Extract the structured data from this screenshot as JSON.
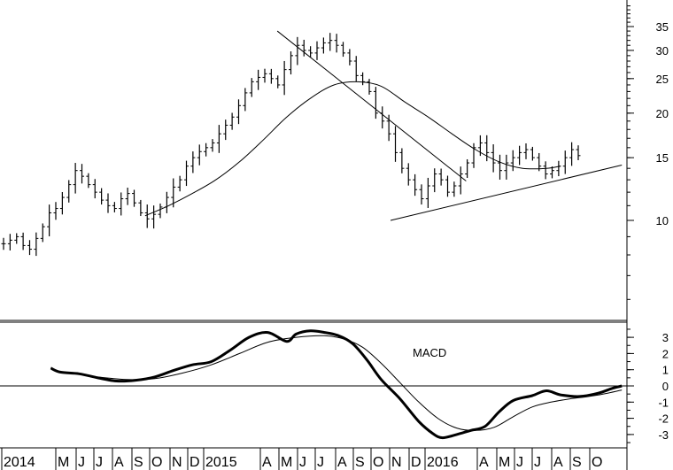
{
  "chart_data": [
    {
      "type": "ohlc",
      "panel": "price",
      "scale": "log",
      "y_ticks": [
        10,
        15,
        20,
        25,
        30,
        35
      ],
      "x_labels": [
        "2014",
        "M",
        "J",
        "J",
        "A",
        "S",
        "O",
        "N",
        "D",
        "2015",
        "A",
        "M",
        "J",
        "J",
        "A",
        "S",
        "O",
        "N",
        "D",
        "2016",
        "A",
        "M",
        "J",
        "J",
        "A",
        "S",
        "O"
      ],
      "weekly_close": [
        8.6,
        8.8,
        9.0,
        8.5,
        8.3,
        8.9,
        9.6,
        10.5,
        10.8,
        11.6,
        12.6,
        13.8,
        13.3,
        12.6,
        12.0,
        11.4,
        11.0,
        10.8,
        11.5,
        11.9,
        11.2,
        10.5,
        10.1,
        10.4,
        10.9,
        11.6,
        12.4,
        13.0,
        14.2,
        15.0,
        15.6,
        16.0,
        16.5,
        17.5,
        18.5,
        19.5,
        21.0,
        22.8,
        24.5,
        25.2,
        25.8,
        25.0,
        24.0,
        26.5,
        29.0,
        31.0,
        30.0,
        29.5,
        30.5,
        31.5,
        32.0,
        31.0,
        29.5,
        28.0,
        25.5,
        24.5,
        23.0,
        20.0,
        19.0,
        17.5,
        15.5,
        14.0,
        13.0,
        12.2,
        11.5,
        12.5,
        13.5,
        13.0,
        12.0,
        12.5,
        13.5,
        14.5,
        16.0,
        16.5,
        15.5,
        14.5,
        13.8,
        14.5,
        15.0,
        15.5,
        15.8,
        15.0,
        14.2,
        13.5,
        13.8,
        14.2,
        15.0,
        15.8,
        15.2
      ],
      "trendlines": [
        {
          "from": [
            58,
            34.0
          ],
          "to": [
            98,
            12.9
          ]
        },
        {
          "from": [
            82,
            10.0
          ],
          "to": [
            131,
            14.3
          ]
        }
      ],
      "moving_average": [
        {
          "week": 30,
          "value": 10.3
        },
        {
          "week": 35,
          "value": 11.0
        },
        {
          "week": 40,
          "value": 11.9
        },
        {
          "week": 45,
          "value": 13.0
        },
        {
          "week": 50,
          "value": 14.6
        },
        {
          "week": 55,
          "value": 16.8
        },
        {
          "week": 60,
          "value": 19.5
        },
        {
          "week": 65,
          "value": 22.0
        },
        {
          "week": 70,
          "value": 24.0
        },
        {
          "week": 75,
          "value": 24.5
        },
        {
          "week": 80,
          "value": 23.8
        },
        {
          "week": 85,
          "value": 21.5
        },
        {
          "week": 90,
          "value": 19.5
        },
        {
          "week": 95,
          "value": 17.5
        },
        {
          "week": 100,
          "value": 15.8
        },
        {
          "week": 105,
          "value": 14.6
        },
        {
          "week": 110,
          "value": 14.0
        },
        {
          "week": 115,
          "value": 14.0
        },
        {
          "week": 118,
          "value": 14.2
        }
      ]
    },
    {
      "type": "line",
      "panel": "indicator",
      "label": "MACD",
      "y_ticks": [
        -3,
        -2,
        -1,
        0,
        1,
        2,
        3
      ],
      "ylim": [
        -3.7,
        3.7
      ],
      "series": [
        {
          "values": [
            {
              "week": 10,
              "value": 1.1
            },
            {
              "week": 12,
              "value": 0.85
            },
            {
              "week": 16,
              "value": 0.75
            },
            {
              "week": 20,
              "value": 0.5
            },
            {
              "week": 24,
              "value": 0.3
            },
            {
              "week": 28,
              "value": 0.35
            },
            {
              "week": 32,
              "value": 0.55
            },
            {
              "week": 36,
              "value": 0.95
            },
            {
              "week": 40,
              "value": 1.3
            },
            {
              "week": 44,
              "value": 1.5
            },
            {
              "week": 48,
              "value": 2.2
            },
            {
              "week": 52,
              "value": 3.0
            },
            {
              "week": 56,
              "value": 3.3
            },
            {
              "week": 60,
              "value": 2.75
            },
            {
              "week": 62,
              "value": 3.2
            },
            {
              "week": 65,
              "value": 3.4
            },
            {
              "week": 68,
              "value": 3.3
            },
            {
              "week": 71,
              "value": 3.1
            },
            {
              "week": 74,
              "value": 2.6
            },
            {
              "week": 77,
              "value": 1.6
            },
            {
              "week": 80,
              "value": 0.4
            },
            {
              "week": 84,
              "value": -0.8
            },
            {
              "week": 88,
              "value": -2.2
            },
            {
              "week": 91,
              "value": -2.95
            },
            {
              "week": 93,
              "value": -3.2
            },
            {
              "week": 96,
              "value": -3.0
            },
            {
              "week": 99,
              "value": -2.75
            },
            {
              "week": 102,
              "value": -2.5
            },
            {
              "week": 105,
              "value": -1.6
            },
            {
              "week": 108,
              "value": -0.9
            },
            {
              "week": 112,
              "value": -0.6
            },
            {
              "week": 115,
              "value": -0.3
            },
            {
              "week": 118,
              "value": -0.55
            },
            {
              "week": 122,
              "value": -0.65
            },
            {
              "week": 126,
              "value": -0.45
            },
            {
              "week": 129,
              "value": -0.15
            },
            {
              "week": 131,
              "value": 0.0
            }
          ]
        },
        {
          "values": [
            {
              "week": 20,
              "value": 0.55
            },
            {
              "week": 26,
              "value": 0.4
            },
            {
              "week": 32,
              "value": 0.45
            },
            {
              "week": 38,
              "value": 0.8
            },
            {
              "week": 44,
              "value": 1.3
            },
            {
              "week": 50,
              "value": 2.0
            },
            {
              "week": 56,
              "value": 2.7
            },
            {
              "week": 62,
              "value": 3.0
            },
            {
              "week": 68,
              "value": 3.1
            },
            {
              "week": 72,
              "value": 2.9
            },
            {
              "week": 76,
              "value": 2.4
            },
            {
              "week": 80,
              "value": 1.4
            },
            {
              "week": 84,
              "value": 0.2
            },
            {
              "week": 88,
              "value": -1.0
            },
            {
              "week": 92,
              "value": -2.0
            },
            {
              "week": 96,
              "value": -2.6
            },
            {
              "week": 100,
              "value": -2.75
            },
            {
              "week": 104,
              "value": -2.55
            },
            {
              "week": 108,
              "value": -1.9
            },
            {
              "week": 112,
              "value": -1.3
            },
            {
              "week": 116,
              "value": -1.0
            },
            {
              "week": 120,
              "value": -0.8
            },
            {
              "week": 124,
              "value": -0.65
            },
            {
              "week": 128,
              "value": -0.45
            },
            {
              "week": 131,
              "value": -0.25
            }
          ]
        }
      ]
    }
  ]
}
